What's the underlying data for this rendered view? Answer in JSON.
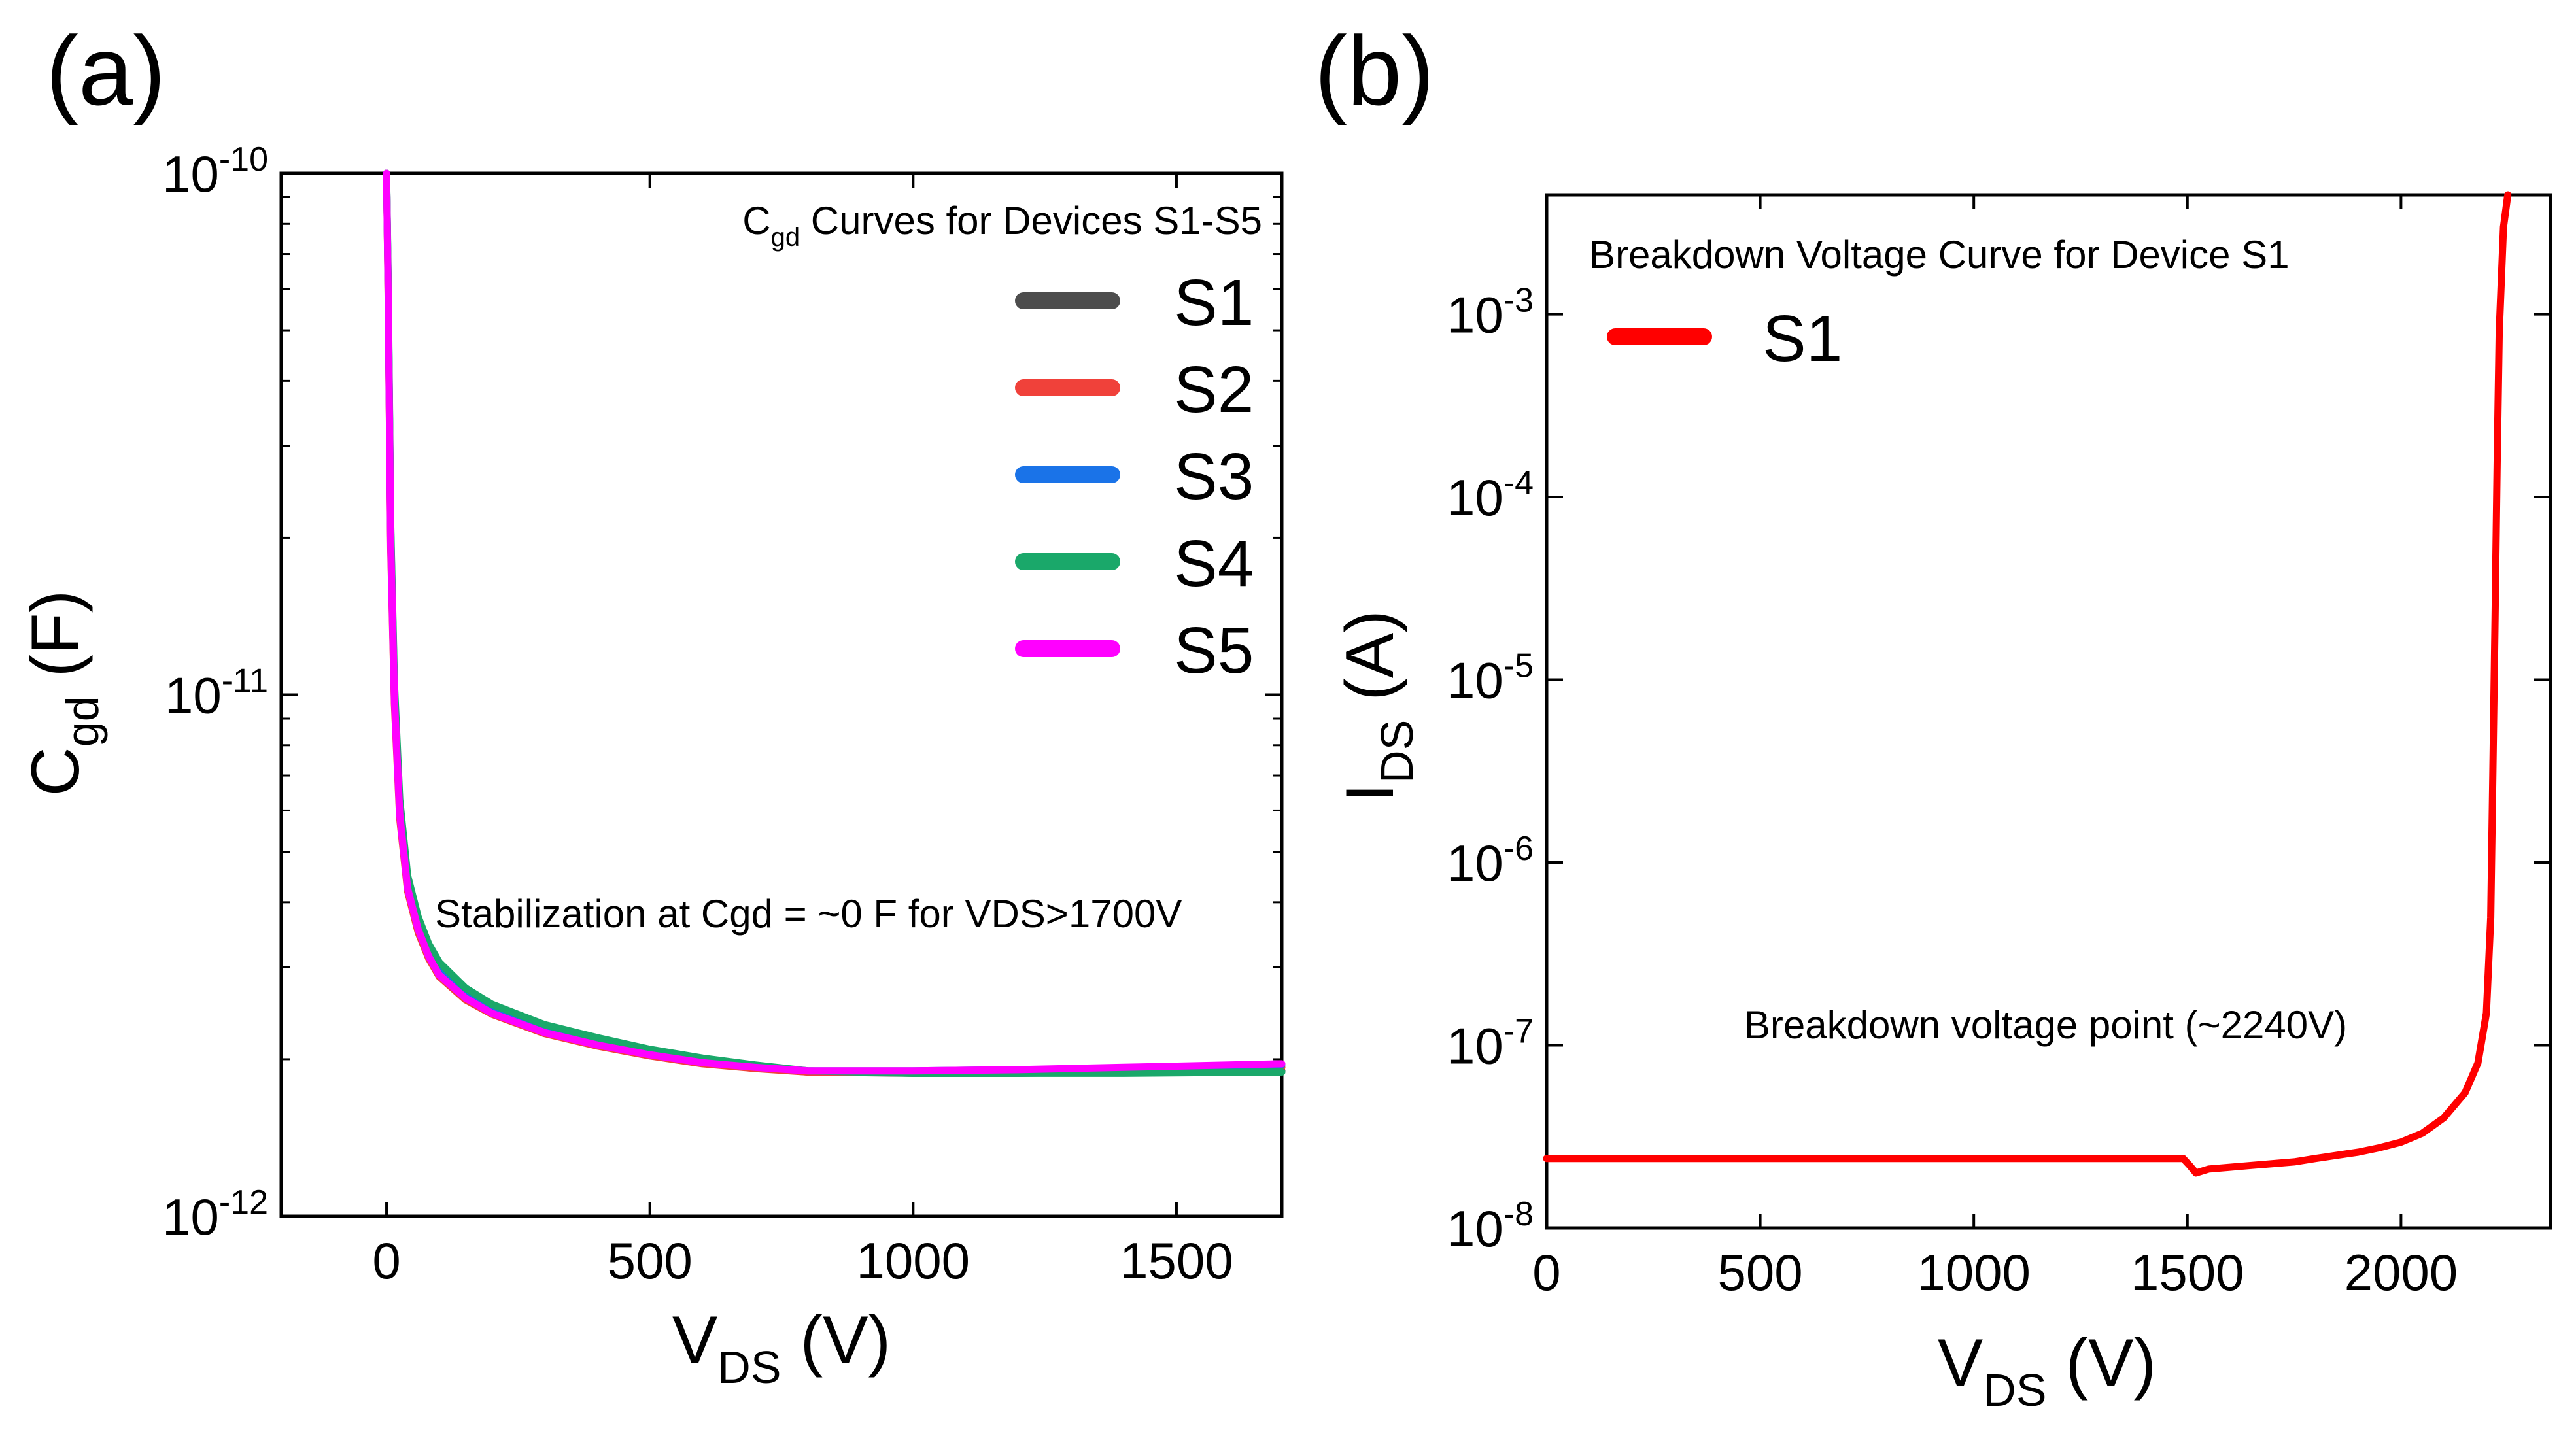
{
  "chart_data": [
    {
      "panel_label": "(a)",
      "type": "line",
      "title": "",
      "legend_title": {
        "main": "C",
        "sub": "gd",
        "rest": " Curves for Devices S1-S5"
      },
      "xlabel": {
        "main": "V",
        "sub": "DS",
        "rest": " (V)"
      },
      "ylabel": {
        "main": "C",
        "sub": "gd",
        "rest": " (F)"
      },
      "xlim": [
        -200,
        1700
      ],
      "ylim": [
        1e-12,
        1e-10
      ],
      "yscale": "log",
      "xticks": [
        0,
        500,
        1000,
        1500
      ],
      "xtick_labels": [
        "0",
        "500",
        "1000",
        "1500"
      ],
      "yticks": [
        {
          "value": 1e-12,
          "base": "10",
          "exp": "-12"
        },
        {
          "value": 1e-11,
          "base": "10",
          "exp": "-11"
        },
        {
          "value": 1e-10,
          "base": "10",
          "exp": "-10"
        }
      ],
      "grid": false,
      "legend_position": "top-right",
      "annotation": "Stabilization at  Cgd = ~0 F for VDS>1700V",
      "series": [
        {
          "name": "S1",
          "color": "#4d4d4d",
          "x": [
            0,
            3,
            8,
            15,
            25,
            40,
            60,
            80,
            100,
            150,
            200,
            300,
            400,
            500,
            600,
            700,
            800,
            1000,
            1200,
            1400,
            1700
          ],
          "y": [
            1e-10,
            6e-11,
            2e-11,
            1e-11,
            6e-12,
            4.3e-12,
            3.6e-12,
            3.2e-12,
            2.95e-12,
            2.65e-12,
            2.48e-12,
            2.27e-12,
            2.15e-12,
            2.05e-12,
            1.98e-12,
            1.93e-12,
            1.89e-12,
            1.88e-12,
            1.88e-12,
            1.89e-12,
            1.9e-12
          ]
        },
        {
          "name": "S2",
          "color": "#f0413a",
          "x": [
            0,
            3,
            8,
            15,
            25,
            40,
            60,
            80,
            100,
            150,
            200,
            300,
            400,
            500,
            600,
            700,
            800,
            1000,
            1200,
            1400,
            1700
          ],
          "y": [
            1e-10,
            5.8e-11,
            1.9e-11,
            9.6e-12,
            5.8e-12,
            4.2e-12,
            3.5e-12,
            3.12e-12,
            2.88e-12,
            2.6e-12,
            2.44e-12,
            2.24e-12,
            2.12e-12,
            2.03e-12,
            1.96e-12,
            1.92e-12,
            1.89e-12,
            1.89e-12,
            1.9e-12,
            1.91e-12,
            1.93e-12
          ]
        },
        {
          "name": "S3",
          "color": "#1a73e8",
          "x": [
            0,
            3,
            8,
            15,
            25,
            40,
            60,
            80,
            100,
            150,
            200,
            300,
            400,
            500,
            600,
            700,
            800,
            1000,
            1200,
            1400,
            1700
          ],
          "y": [
            1e-10,
            6.1e-11,
            2.05e-11,
            1.02e-11,
            6.1e-12,
            4.4e-12,
            3.65e-12,
            3.25e-12,
            3e-12,
            2.68e-12,
            2.5e-12,
            2.29e-12,
            2.17e-12,
            2.07e-12,
            1.99e-12,
            1.94e-12,
            1.9e-12,
            1.9e-12,
            1.91e-12,
            1.92e-12,
            1.95e-12
          ]
        },
        {
          "name": "S4",
          "color": "#1aa86a",
          "x": [
            0,
            3,
            8,
            15,
            25,
            40,
            60,
            80,
            100,
            150,
            200,
            300,
            400,
            500,
            600,
            700,
            800,
            1000,
            1200,
            1400,
            1700
          ],
          "y": [
            1e-10,
            6.3e-11,
            2.1e-11,
            1.05e-11,
            6.3e-12,
            4.5e-12,
            3.75e-12,
            3.33e-12,
            3.07e-12,
            2.74e-12,
            2.55e-12,
            2.33e-12,
            2.2e-12,
            2.09e-12,
            2.01e-12,
            1.95e-12,
            1.9e-12,
            1.88e-12,
            1.88e-12,
            1.88e-12,
            1.89e-12
          ]
        },
        {
          "name": "S5",
          "color": "#ff00ff",
          "x": [
            0,
            3,
            8,
            15,
            25,
            40,
            60,
            80,
            100,
            150,
            200,
            300,
            400,
            500,
            600,
            700,
            800,
            1000,
            1200,
            1400,
            1700
          ],
          "y": [
            1e-10,
            5.9e-11,
            1.95e-11,
            9.8e-12,
            5.9e-12,
            4.25e-12,
            3.55e-12,
            3.15e-12,
            2.9e-12,
            2.62e-12,
            2.45e-12,
            2.25e-12,
            2.13e-12,
            2.04e-12,
            1.97e-12,
            1.93e-12,
            1.9e-12,
            1.9e-12,
            1.91e-12,
            1.93e-12,
            1.96e-12
          ]
        }
      ]
    },
    {
      "panel_label": "(b)",
      "type": "line",
      "title": "",
      "legend_title": {
        "main": "Breakdown Voltage Curve for Device S1"
      },
      "xlabel": {
        "main": "V",
        "sub": "DS",
        "rest": " (V)"
      },
      "ylabel": {
        "main": "I",
        "sub": "DS",
        "rest": " (A)"
      },
      "xlim": [
        0,
        2350
      ],
      "ylim": [
        1e-08,
        0.0045
      ],
      "yscale": "log",
      "xticks": [
        0,
        500,
        1000,
        1500,
        2000
      ],
      "xtick_labels": [
        "0",
        "500",
        "1000",
        "1500",
        "2000"
      ],
      "yticks": [
        {
          "value": 1e-08,
          "base": "10",
          "exp": "-8"
        },
        {
          "value": 1e-07,
          "base": "10",
          "exp": "-7"
        },
        {
          "value": 1e-06,
          "base": "10",
          "exp": "-6"
        },
        {
          "value": 1e-05,
          "base": "10",
          "exp": "-5"
        },
        {
          "value": 0.0001,
          "base": "10",
          "exp": "-4"
        },
        {
          "value": 0.001,
          "base": "10",
          "exp": "-3"
        }
      ],
      "grid": false,
      "legend_position": "top-left",
      "annotation": "Breakdown voltage point (~2240V)",
      "series": [
        {
          "name": "S1",
          "color": "#ff0000",
          "x": [
            0,
            500,
            1000,
            1490,
            1505,
            1520,
            1550,
            1600,
            1650,
            1700,
            1750,
            1800,
            1850,
            1900,
            1950,
            2000,
            2050,
            2100,
            2150,
            2180,
            2200,
            2210,
            2215,
            2220,
            2225,
            2230,
            2240,
            2250
          ],
          "y": [
            2.4e-08,
            2.4e-08,
            2.4e-08,
            2.4e-08,
            2.2e-08,
            2e-08,
            2.1e-08,
            2.15e-08,
            2.2e-08,
            2.25e-08,
            2.3e-08,
            2.4e-08,
            2.5e-08,
            2.6e-08,
            2.75e-08,
            2.95e-08,
            3.3e-08,
            4e-08,
            5.5e-08,
            8e-08,
            1.5e-07,
            5e-07,
            3e-06,
            2e-05,
            0.00015,
            0.0008,
            0.003,
            0.0045
          ]
        }
      ]
    }
  ]
}
